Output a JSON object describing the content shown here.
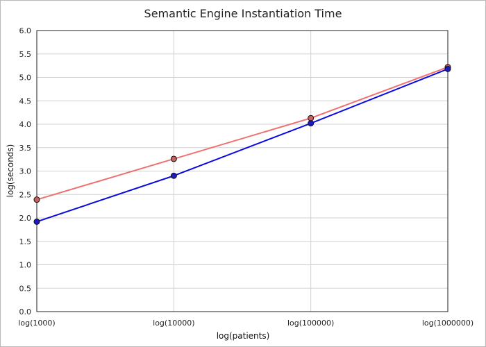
{
  "chart_data": {
    "type": "line",
    "title": "Semantic Engine Instantiation Time",
    "xlabel": "log(patients)",
    "ylabel": "log(seconds)",
    "categories": [
      "log(1000)",
      "log(10000)",
      "log(100000)",
      "log(1000000)"
    ],
    "ylim": [
      0,
      6
    ],
    "ytick_step": 0.5,
    "yticks": [
      "0.0",
      "0.5",
      "1.0",
      "1.5",
      "2.0",
      "2.5",
      "3.0",
      "3.5",
      "4.0",
      "4.5",
      "5.0",
      "5.5",
      "6.0"
    ],
    "grid": true,
    "series": [
      {
        "color": "#f07070",
        "marker_fill": "#c86060",
        "values": [
          2.39,
          3.26,
          4.13,
          5.22
        ]
      },
      {
        "color": "#0a0ae0",
        "marker_fill": "#1c1cc0",
        "values": [
          1.92,
          2.9,
          4.02,
          5.18
        ]
      }
    ]
  }
}
